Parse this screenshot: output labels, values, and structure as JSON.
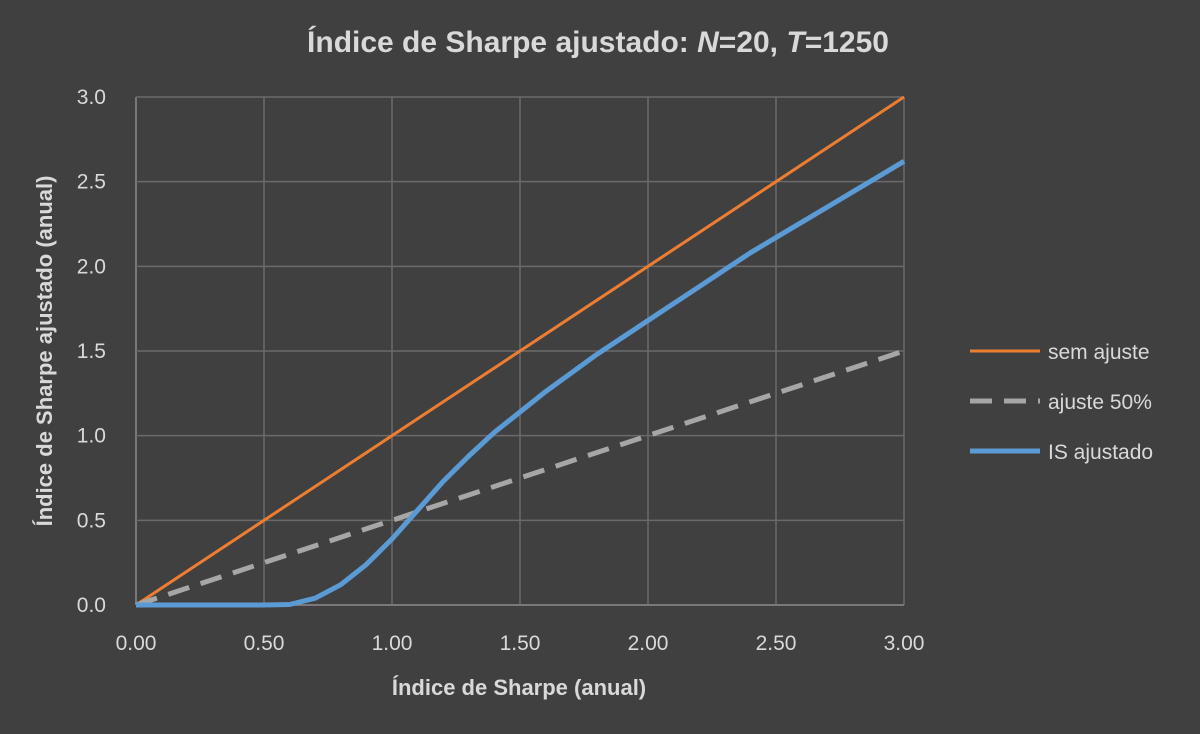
{
  "chart_data": {
    "type": "line",
    "title_prefix": "Índice de Sharpe ajustado:  ",
    "title_n_var": "N",
    "title_n_value": "=20, ",
    "title_t_var": "T",
    "title_t_value": "=1250",
    "xlabel": "Índice de Sharpe (anual)",
    "ylabel": "Índice de Sharpe ajustado (anual)",
    "xlim": [
      0,
      3
    ],
    "ylim": [
      0,
      3
    ],
    "x_ticks": [
      "0.00",
      "0.50",
      "1.00",
      "1.50",
      "2.00",
      "2.50",
      "3.00"
    ],
    "y_ticks": [
      "0.0",
      "0.5",
      "1.0",
      "1.5",
      "2.0",
      "2.5",
      "3.0"
    ],
    "grid": true,
    "legend_position": "right",
    "series": [
      {
        "name": "sem ajuste",
        "color": "#ed7d31",
        "style": "solid",
        "x": [
          0,
          3
        ],
        "y": [
          0,
          3
        ]
      },
      {
        "name": "ajuste 50%",
        "color": "#a6a6a6",
        "style": "dashed",
        "x": [
          0,
          3
        ],
        "y": [
          0,
          1.5
        ]
      },
      {
        "name": "IS ajustado",
        "color": "#5b9bd5",
        "style": "solid",
        "x": [
          0,
          0.1,
          0.2,
          0.3,
          0.4,
          0.5,
          0.6,
          0.7,
          0.8,
          0.9,
          1.0,
          1.1,
          1.2,
          1.3,
          1.4,
          1.5,
          1.6,
          1.7,
          1.8,
          1.9,
          2.0,
          2.1,
          2.2,
          2.3,
          2.4,
          2.5,
          2.6,
          2.7,
          2.8,
          2.9,
          3.0
        ],
        "y": [
          0,
          0,
          0,
          0,
          0,
          0,
          0.003,
          0.04,
          0.12,
          0.24,
          0.39,
          0.56,
          0.73,
          0.88,
          1.02,
          1.14,
          1.26,
          1.37,
          1.48,
          1.58,
          1.68,
          1.78,
          1.88,
          1.98,
          2.08,
          2.17,
          2.26,
          2.35,
          2.44,
          2.53,
          2.62
        ]
      }
    ]
  }
}
